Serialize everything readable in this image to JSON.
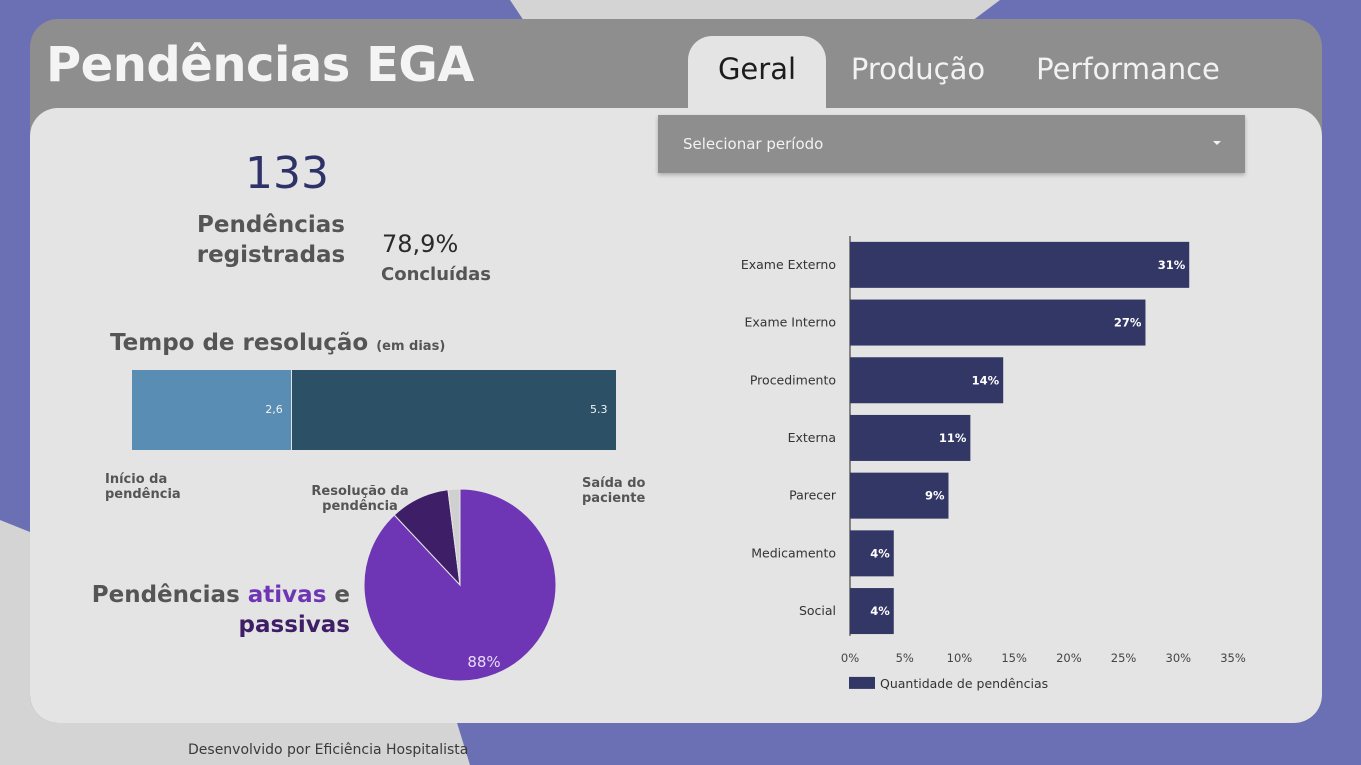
{
  "app": {
    "title": "Pendências EGA",
    "footer": "Desenvolvido por Eficiência Hospitalista"
  },
  "tabs": [
    {
      "label": "Geral",
      "active": true
    },
    {
      "label": "Produção",
      "active": false
    },
    {
      "label": "Performance",
      "active": false
    }
  ],
  "kpis": {
    "total_value": "133",
    "total_label_line1": "Pendências",
    "total_label_line2": "registradas",
    "done_value": "78,9%",
    "done_label": "Concluídas"
  },
  "resolution": {
    "title": "Tempo de resolução",
    "title_unit": "(em dias)",
    "segments": [
      {
        "label_value": "2,6",
        "value": 2.6,
        "color": "#5a8db4"
      },
      {
        "label_value": "5.3",
        "value": 5.3,
        "color": "#2c5066"
      }
    ],
    "labels": {
      "start_line1": "Início da",
      "start_line2": "pendência",
      "middle_line1": "Resolução da",
      "middle_line2": "pendência",
      "end_line1": "Saída do",
      "end_line2": "paciente"
    }
  },
  "pie": {
    "title_part1": "Pendências ",
    "title_active": "ativas",
    "title_part2": " e",
    "title_passive": "passivas",
    "main_label": "88%",
    "colors": [
      "#6e36b5",
      "#3e1e66",
      "#d0d0d0"
    ]
  },
  "period_select": {
    "placeholder": "Selecionar período"
  },
  "chart_data": {
    "type": "bar",
    "orientation": "horizontal",
    "categories": [
      "Exame Externo",
      "Exame Interno",
      "Procedimento",
      "Externa",
      "Parecer",
      "Medicamento",
      "Social"
    ],
    "series": [
      {
        "name": "Quantidade de pendências",
        "values": [
          31,
          27,
          14,
          11,
          9,
          4,
          4
        ]
      }
    ],
    "data_labels": [
      "31%",
      "27%",
      "14%",
      "11%",
      "9%",
      "4%",
      "4%"
    ],
    "xticks": [
      "0%",
      "5%",
      "10%",
      "15%",
      "20%",
      "25%",
      "30%",
      "35%"
    ],
    "xlim": [
      0,
      35
    ],
    "color": "#333766",
    "legend_position": "bottom-left"
  },
  "pie_chart_data": {
    "type": "pie",
    "values": [
      88,
      10,
      2
    ],
    "data_labels": [
      "88%"
    ]
  }
}
